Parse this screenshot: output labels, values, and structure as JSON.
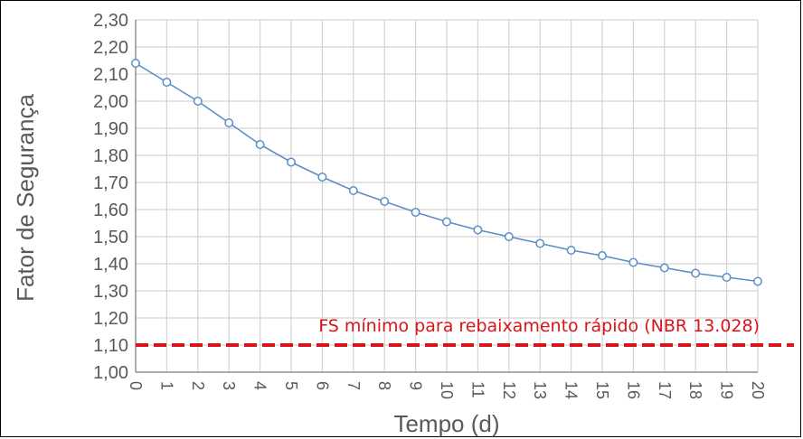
{
  "chart_data": {
    "type": "line",
    "xlabel": "Tempo (d)",
    "ylabel": "Fator de Segurança",
    "xlim": [
      0,
      20
    ],
    "ylim": [
      1.0,
      2.3
    ],
    "grid": true,
    "x_ticks": [
      "0",
      "1",
      "2",
      "3",
      "4",
      "5",
      "6",
      "7",
      "8",
      "9",
      "10",
      "11",
      "12",
      "13",
      "14",
      "15",
      "16",
      "17",
      "18",
      "19",
      "20"
    ],
    "y_ticks": [
      "1,00",
      "1,10",
      "1,20",
      "1,30",
      "1,40",
      "1,50",
      "1,60",
      "1,70",
      "1,80",
      "1,90",
      "2,00",
      "2,10",
      "2,20",
      "2,30"
    ],
    "x_tick_values": [
      0,
      1,
      2,
      3,
      4,
      5,
      6,
      7,
      8,
      9,
      10,
      11,
      12,
      13,
      14,
      15,
      16,
      17,
      18,
      19,
      20
    ],
    "y_tick_values": [
      1.0,
      1.1,
      1.2,
      1.3,
      1.4,
      1.5,
      1.6,
      1.7,
      1.8,
      1.9,
      2.0,
      2.1,
      2.2,
      2.3
    ],
    "series": [
      {
        "color": "#5b8dc6",
        "x": [
          0,
          1,
          2,
          3,
          4,
          5,
          6,
          7,
          8,
          9,
          10,
          11,
          12,
          13,
          14,
          15,
          16,
          17,
          18,
          19,
          20
        ],
        "y": [
          2.14,
          2.07,
          2.0,
          1.92,
          1.84,
          1.775,
          1.72,
          1.67,
          1.63,
          1.59,
          1.555,
          1.525,
          1.5,
          1.475,
          1.45,
          1.43,
          1.405,
          1.385,
          1.365,
          1.35,
          1.335
        ]
      }
    ],
    "reference_line": {
      "y": 1.1,
      "label": "FS mínimo para rebaixamento rápido (NBR 13.028)",
      "color": "#d9141a",
      "style": "dashed"
    }
  }
}
